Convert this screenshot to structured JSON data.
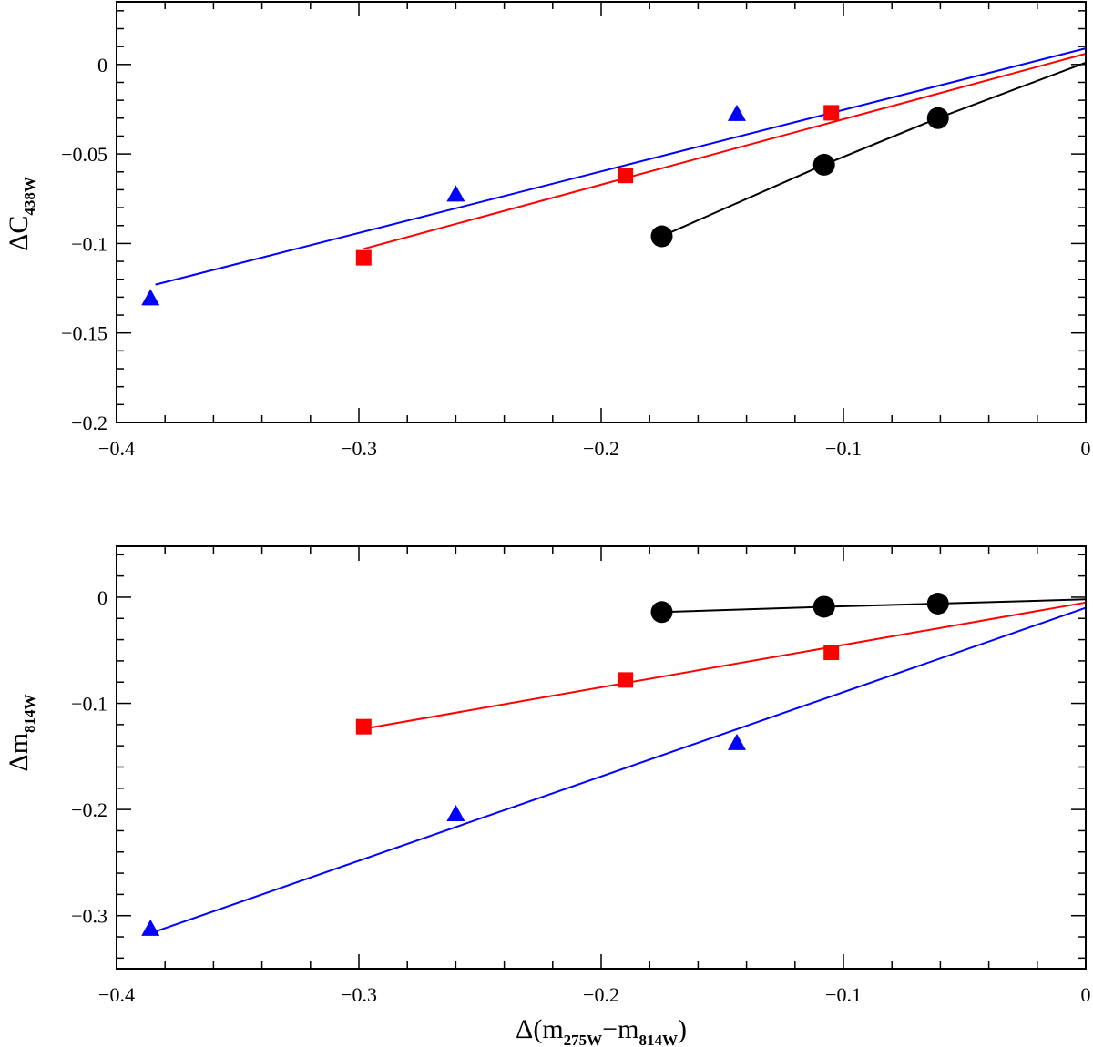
{
  "chart_data": [
    {
      "type": "scatter",
      "panel": "top",
      "ylabel_main": "ΔC",
      "ylabel_sub": "438W",
      "xlim": [
        -0.4,
        0
      ],
      "ylim": [
        -0.2,
        0.035
      ],
      "x_ticks": [
        -0.4,
        -0.3,
        -0.2,
        -0.1,
        0
      ],
      "x_tick_labels": [
        "−0.4",
        "−0.3",
        "−0.2",
        "−0.1",
        "0"
      ],
      "y_ticks": [
        -0.2,
        -0.15,
        -0.1,
        -0.05,
        0
      ],
      "y_tick_labels": [
        "−0.2",
        "−0.15",
        "−0.1",
        "−0.05",
        "0"
      ],
      "series": [
        {
          "name": "black",
          "marker": "circle",
          "color": "#000000",
          "points": [
            [
              -0.175,
              -0.096
            ],
            [
              -0.108,
              -0.056
            ],
            [
              -0.061,
              -0.03
            ]
          ],
          "fit": [
            [
              -0.175,
              -0.096
            ],
            [
              -0.108,
              -0.056
            ],
            [
              -0.061,
              -0.03
            ],
            [
              0,
              0.001
            ]
          ]
        },
        {
          "name": "red",
          "marker": "square",
          "color": "#ff0000",
          "points": [
            [
              -0.298,
              -0.108
            ],
            [
              -0.19,
              -0.062
            ],
            [
              -0.105,
              -0.027
            ]
          ],
          "fit": [
            [
              -0.298,
              -0.103
            ],
            [
              0,
              0.006
            ]
          ]
        },
        {
          "name": "blue",
          "marker": "triangle",
          "color": "#0000ff",
          "points": [
            [
              -0.386,
              -0.131
            ],
            [
              -0.26,
              -0.073
            ],
            [
              -0.144,
              -0.028
            ]
          ],
          "fit": [
            [
              -0.384,
              -0.123
            ],
            [
              0,
              0.009
            ]
          ]
        }
      ]
    },
    {
      "type": "scatter",
      "panel": "bottom",
      "ylabel_main": "Δm",
      "ylabel_sub": "814W",
      "xlabel_prefix": "Δ(m",
      "xlabel_sub1": "275W",
      "xlabel_mid": "−m",
      "xlabel_sub2": "814W",
      "xlabel_suffix": ")",
      "xlim": [
        -0.4,
        0
      ],
      "ylim": [
        -0.35,
        0.048
      ],
      "x_ticks": [
        -0.4,
        -0.3,
        -0.2,
        -0.1,
        0
      ],
      "x_tick_labels": [
        "−0.4",
        "−0.3",
        "−0.2",
        "−0.1",
        "0"
      ],
      "y_ticks": [
        -0.3,
        -0.2,
        -0.1,
        0
      ],
      "y_tick_labels": [
        "−0.3",
        "−0.2",
        "−0.1",
        "0"
      ],
      "series": [
        {
          "name": "black",
          "marker": "circle",
          "color": "#000000",
          "points": [
            [
              -0.175,
              -0.014
            ],
            [
              -0.108,
              -0.009
            ],
            [
              -0.061,
              -0.006
            ]
          ],
          "fit": [
            [
              -0.175,
              -0.014
            ],
            [
              -0.108,
              -0.009
            ],
            [
              -0.061,
              -0.006
            ],
            [
              0,
              -0.002
            ]
          ]
        },
        {
          "name": "red",
          "marker": "square",
          "color": "#ff0000",
          "points": [
            [
              -0.298,
              -0.122
            ],
            [
              -0.19,
              -0.078
            ],
            [
              -0.105,
              -0.052
            ]
          ],
          "fit": [
            [
              -0.298,
              -0.124
            ],
            [
              0,
              -0.005
            ]
          ]
        },
        {
          "name": "blue",
          "marker": "triangle",
          "color": "#0000ff",
          "points": [
            [
              -0.386,
              -0.313
            ],
            [
              -0.26,
              -0.205
            ],
            [
              -0.144,
              -0.138
            ]
          ],
          "fit": [
            [
              -0.384,
              -0.315
            ],
            [
              0,
              -0.01
            ]
          ]
        }
      ]
    }
  ]
}
